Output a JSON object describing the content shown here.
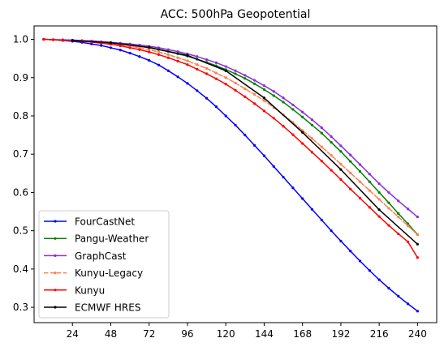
{
  "chart_data": {
    "type": "line",
    "title": "ACC: 500hPa Geopotential",
    "xlabel": "",
    "ylabel": "",
    "xlim": [
      0,
      252
    ],
    "ylim": [
      0.26,
      1.035
    ],
    "xticks": [
      24,
      48,
      72,
      96,
      120,
      144,
      168,
      192,
      216,
      240
    ],
    "yticks": [
      0.3,
      0.4,
      0.5,
      0.6,
      0.7,
      0.8,
      0.9,
      1.0
    ],
    "ytick_labels": [
      "0.3",
      "0.4",
      "0.5",
      "0.6",
      "0.7",
      "0.8",
      "0.9",
      "1.0"
    ],
    "grid": false,
    "legend_position": "lower-left",
    "series": [
      {
        "name": "FourCastNet",
        "color": "#0000ff",
        "linestyle": "solid",
        "x": [
          6,
          12,
          18,
          24,
          30,
          36,
          42,
          48,
          54,
          60,
          66,
          72,
          78,
          84,
          90,
          96,
          102,
          108,
          114,
          120,
          126,
          132,
          138,
          144,
          150,
          156,
          162,
          168,
          174,
          180,
          186,
          192,
          198,
          204,
          210,
          216,
          222,
          228,
          234,
          240
        ],
        "values": [
          1.0,
          0.999,
          0.997,
          0.995,
          0.992,
          0.988,
          0.984,
          0.978,
          0.972,
          0.964,
          0.955,
          0.945,
          0.933,
          0.918,
          0.902,
          0.885,
          0.866,
          0.846,
          0.824,
          0.8,
          0.776,
          0.75,
          0.723,
          0.696,
          0.668,
          0.64,
          0.612,
          0.584,
          0.556,
          0.528,
          0.5,
          0.473,
          0.447,
          0.421,
          0.396,
          0.372,
          0.35,
          0.329,
          0.309,
          0.29
        ]
      },
      {
        "name": "Pangu-Weather",
        "color": "#008000",
        "linestyle": "solid",
        "x": [
          6,
          12,
          18,
          24,
          30,
          36,
          42,
          48,
          54,
          60,
          66,
          72,
          78,
          84,
          90,
          96,
          102,
          108,
          114,
          120,
          126,
          132,
          138,
          144,
          150,
          156,
          162,
          168,
          174,
          180,
          186,
          192,
          198,
          204,
          210,
          216,
          222,
          228,
          234,
          240
        ],
        "values": [
          1.0,
          0.999,
          0.998,
          0.998,
          0.997,
          0.995,
          0.993,
          0.991,
          0.988,
          0.985,
          0.982,
          0.978,
          0.973,
          0.968,
          0.962,
          0.956,
          0.948,
          0.94,
          0.931,
          0.921,
          0.91,
          0.898,
          0.884,
          0.869,
          0.853,
          0.836,
          0.817,
          0.797,
          0.776,
          0.755,
          0.731,
          0.707,
          0.681,
          0.655,
          0.628,
          0.6,
          0.573,
          0.545,
          0.518,
          0.49
        ]
      },
      {
        "name": "GraphCast",
        "color": "#8a2be2",
        "linestyle": "solid",
        "x": [
          6,
          12,
          18,
          24,
          30,
          36,
          42,
          48,
          54,
          60,
          66,
          72,
          78,
          84,
          90,
          96,
          102,
          108,
          114,
          120,
          126,
          132,
          138,
          144,
          150,
          156,
          162,
          168,
          174,
          180,
          186,
          192,
          198,
          204,
          210,
          216,
          222,
          228,
          234,
          240
        ],
        "values": [
          1.0,
          0.999,
          0.999,
          0.998,
          0.997,
          0.996,
          0.994,
          0.992,
          0.99,
          0.988,
          0.985,
          0.982,
          0.978,
          0.973,
          0.968,
          0.962,
          0.955,
          0.947,
          0.939,
          0.929,
          0.918,
          0.906,
          0.893,
          0.879,
          0.864,
          0.847,
          0.829,
          0.81,
          0.79,
          0.769,
          0.746,
          0.722,
          0.698,
          0.673,
          0.648,
          0.623,
          0.6,
          0.578,
          0.557,
          0.536
        ]
      },
      {
        "name": "Kunyu-Legacy",
        "color": "#ff7f50",
        "linestyle": "dashed",
        "x": [
          6,
          12,
          18,
          24,
          30,
          36,
          42,
          48,
          54,
          60,
          66,
          72,
          78,
          84,
          90,
          96,
          102,
          108,
          114,
          120,
          126,
          132,
          138,
          144,
          150,
          156,
          162,
          168,
          174,
          180,
          186,
          192,
          198,
          204,
          210,
          216,
          222,
          228,
          234,
          240
        ],
        "values": [
          1.0,
          0.999,
          0.998,
          0.997,
          0.996,
          0.994,
          0.992,
          0.989,
          0.986,
          0.982,
          0.978,
          0.973,
          0.967,
          0.96,
          0.952,
          0.944,
          0.934,
          0.924,
          0.912,
          0.9,
          0.886,
          0.871,
          0.856,
          0.84,
          0.822,
          0.803,
          0.783,
          0.762,
          0.741,
          0.719,
          0.697,
          0.674,
          0.651,
          0.628,
          0.605,
          0.582,
          0.559,
          0.536,
          0.513,
          0.49
        ]
      },
      {
        "name": "Kunyu",
        "color": "#ff0000",
        "linestyle": "solid",
        "x": [
          6,
          12,
          18,
          24,
          30,
          36,
          42,
          48,
          54,
          60,
          66,
          72,
          78,
          84,
          90,
          96,
          102,
          108,
          114,
          120,
          126,
          132,
          138,
          144,
          150,
          156,
          162,
          168,
          174,
          180,
          186,
          192,
          198,
          204,
          210,
          216,
          222,
          228,
          234,
          240
        ],
        "values": [
          1.0,
          0.999,
          0.998,
          0.997,
          0.995,
          0.993,
          0.99,
          0.987,
          0.983,
          0.978,
          0.973,
          0.967,
          0.96,
          0.952,
          0.943,
          0.934,
          0.922,
          0.91,
          0.897,
          0.883,
          0.867,
          0.85,
          0.832,
          0.813,
          0.794,
          0.773,
          0.751,
          0.728,
          0.705,
          0.682,
          0.658,
          0.634,
          0.609,
          0.585,
          0.561,
          0.537,
          0.514,
          0.492,
          0.471,
          0.43
        ]
      },
      {
        "name": "ECMWF HRES",
        "color": "#000000",
        "linestyle": "solid",
        "x": [
          24,
          48,
          72,
          96,
          120,
          144,
          168,
          192,
          216,
          240
        ],
        "values": [
          0.997,
          0.991,
          0.979,
          0.958,
          0.918,
          0.847,
          0.757,
          0.66,
          0.555,
          0.465
        ]
      }
    ]
  }
}
